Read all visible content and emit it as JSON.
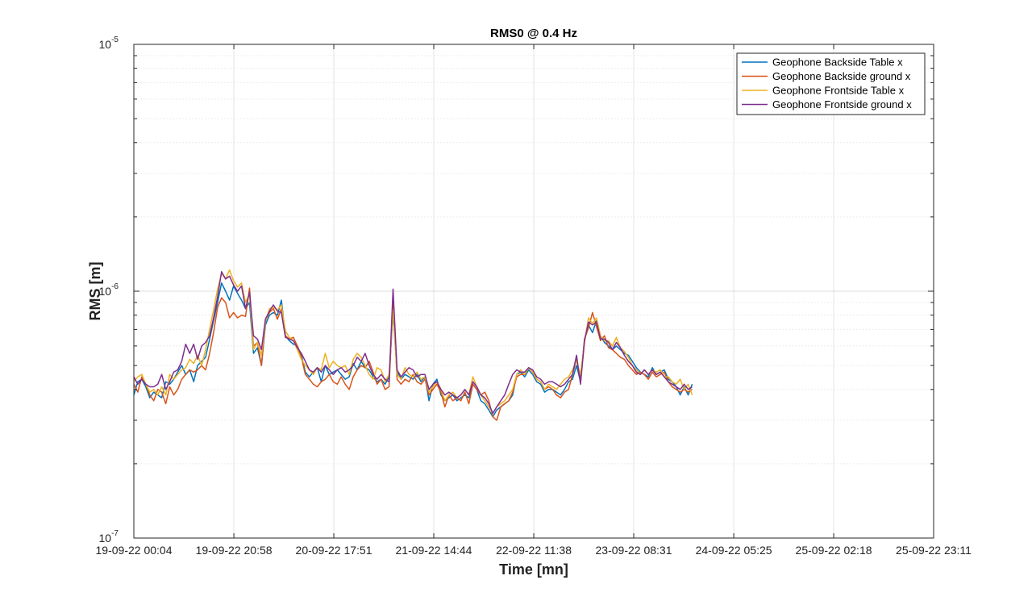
{
  "chart_data": {
    "type": "line",
    "title": "RMS0 @ 0.4 Hz",
    "xlabel": "Time [mn]",
    "ylabel": "RMS [m]",
    "y_scale": "log",
    "ylim": [
      1e-07,
      1e-05
    ],
    "y_ticks": [
      {
        "value": 1e-07,
        "base": "10",
        "exp": "-7"
      },
      {
        "value": 1e-06,
        "base": "10",
        "exp": "-6"
      },
      {
        "value": 1e-05,
        "base": "10",
        "exp": "-5"
      }
    ],
    "x_tick_labels": [
      "19-09-22 00:04",
      "19-09-22 20:58",
      "20-09-22 17:51",
      "21-09-22 14:44",
      "22-09-22 11:38",
      "23-09-22 08:31",
      "24-09-22 05:25",
      "25-09-22 02:18",
      "25-09-22 23:11"
    ],
    "xlim": [
      "19-09-22 00:04",
      "25-09-22 23:11"
    ],
    "x_sample_step_min": 50,
    "grid": true,
    "minor_grid": true,
    "legend_position": "top-right",
    "series": [
      {
        "name": "Geophone Backside Table x",
        "color": "#0072BD",
        "values": [
          3.8e-07,
          4.3e-07,
          4.4e-07,
          4.1e-07,
          3.7e-07,
          3.9e-07,
          3.8e-07,
          3.7e-07,
          4.3e-07,
          4.2e-07,
          4.4e-07,
          4.7e-07,
          5e-07,
          4.6e-07,
          4.8e-07,
          4.3e-07,
          5e-07,
          5.2e-07,
          5.4e-07,
          6.4e-07,
          7.6e-07,
          9e-07,
          1.08e-06,
          1e-06,
          9.2e-07,
          1.05e-06,
          9.8e-07,
          9.2e-07,
          8.5e-07,
          9e-07,
          5.6e-07,
          5.9e-07,
          5e-07,
          7.3e-07,
          8e-07,
          8.2e-07,
          8e-07,
          9.2e-07,
          6.6e-07,
          6.3e-07,
          6.1e-07,
          6e-07,
          5.5e-07,
          4.7e-07,
          4.5e-07,
          4.7e-07,
          4.9e-07,
          4.3e-07,
          5e-07,
          4.6e-07,
          4.7e-07,
          4.8e-07,
          4.6e-07,
          4.4e-07,
          4.5e-07,
          5.1e-07,
          4.8e-07,
          5.2e-07,
          4.9e-07,
          4.8e-07,
          4.5e-07,
          4.3e-07,
          4.4e-07,
          4.2e-07,
          4.5e-07,
          8.2e-07,
          4.7e-07,
          4.4e-07,
          4.6e-07,
          4.5e-07,
          4.4e-07,
          4.6e-07,
          4.3e-07,
          4.5e-07,
          3.6e-07,
          4.2e-07,
          4.4e-07,
          3.8e-07,
          3.6e-07,
          3.7e-07,
          3.8e-07,
          3.6e-07,
          3.7e-07,
          3.8e-07,
          3.7e-07,
          4.2e-07,
          4e-07,
          3.6e-07,
          3.5e-07,
          3.3e-07,
          3.1e-07,
          3.3e-07,
          3.4e-07,
          3.5e-07,
          3.6e-07,
          3.8e-07,
          4.6e-07,
          4.7e-07,
          4.5e-07,
          4.8e-07,
          4.6e-07,
          4.3e-07,
          4.2e-07,
          3.9e-07,
          4e-07,
          4e-07,
          3.9e-07,
          3.8e-07,
          4e-07,
          4.3e-07,
          4.4e-07,
          5e-07,
          4.3e-07,
          6.4e-07,
          7.3e-07,
          6.8e-07,
          7.6e-07,
          6.6e-07,
          6.2e-07,
          6e-07,
          5.8e-07,
          6e-07,
          5.8e-07,
          5.6e-07,
          5.5e-07,
          5.2e-07,
          4.9e-07,
          4.7e-07,
          4.6e-07,
          4.5e-07,
          4.9e-07,
          4.6e-07,
          4.7e-07,
          4.8e-07,
          4.4e-07,
          4.3e-07,
          4.1e-07,
          3.8e-07,
          4.1e-07,
          3.8e-07,
          4.2e-07
        ]
      },
      {
        "name": "Geophone Backside ground x",
        "color": "#D95319",
        "values": [
          4.2e-07,
          3.9e-07,
          4.5e-07,
          4.2e-07,
          3.8e-07,
          3.6e-07,
          4e-07,
          3.9e-07,
          3.5e-07,
          4.1e-07,
          3.8e-07,
          4e-07,
          4.4e-07,
          4.6e-07,
          4.8e-07,
          4.7e-07,
          4.8e-07,
          5e-07,
          4.8e-07,
          5.6e-07,
          6.8e-07,
          8.6e-07,
          9.4e-07,
          9e-07,
          7.8e-07,
          8.2e-07,
          7.8e-07,
          8e-07,
          7.9e-07,
          1.03e-06,
          6e-07,
          6.2e-07,
          5e-07,
          7.6e-07,
          8.2e-07,
          8.5e-07,
          7.7e-07,
          8.5e-07,
          6.6e-07,
          6.4e-07,
          6.5e-07,
          6e-07,
          5.4e-07,
          4.6e-07,
          4.4e-07,
          4.2e-07,
          4.1e-07,
          4.3e-07,
          4.4e-07,
          4.6e-07,
          4.3e-07,
          4.2e-07,
          4.5e-07,
          4.2e-07,
          4e-07,
          4.5e-07,
          4.8e-07,
          5e-07,
          4.9e-07,
          5.2e-07,
          4.7e-07,
          4.2e-07,
          4.4e-07,
          4e-07,
          4.1e-07,
          9.4e-07,
          4.4e-07,
          4.2e-07,
          4.4e-07,
          4.3e-07,
          4.6e-07,
          4.3e-07,
          4.2e-07,
          4.4e-07,
          3.8e-07,
          4e-07,
          4.2e-07,
          3.9e-07,
          3.4e-07,
          3.8e-07,
          3.6e-07,
          3.7e-07,
          3.6e-07,
          3.9e-07,
          3.5e-07,
          4.2e-07,
          4e-07,
          3.8e-07,
          3.9e-07,
          3.6e-07,
          3.1e-07,
          3e-07,
          3.4e-07,
          3.5e-07,
          3.6e-07,
          3.9e-07,
          4.5e-07,
          4.6e-07,
          4.6e-07,
          4.9e-07,
          4.7e-07,
          4.4e-07,
          4.3e-07,
          4e-07,
          4.1e-07,
          4e-07,
          3.8e-07,
          3.7e-07,
          3.9e-07,
          4e-07,
          4.6e-07,
          5.3e-07,
          4.4e-07,
          6.4e-07,
          7.1e-07,
          8.2e-07,
          7.2e-07,
          6.3e-07,
          6.6e-07,
          5.9e-07,
          5.8e-07,
          5.6e-07,
          5.4e-07,
          5.3e-07,
          5e-07,
          4.8e-07,
          4.6e-07,
          4.7e-07,
          4.6e-07,
          4.4e-07,
          4.7e-07,
          4.5e-07,
          4.6e-07,
          4.7e-07,
          4.3e-07,
          4.1e-07,
          4e-07,
          3.9e-07,
          4e-07,
          3.9e-07,
          4e-07
        ]
      },
      {
        "name": "Geophone Frontside Table x",
        "color": "#EDB120",
        "values": [
          4.3e-07,
          4.5e-07,
          4.6e-07,
          4.2e-07,
          3.9e-07,
          4e-07,
          3.8e-07,
          4.1e-07,
          3.8e-07,
          4.6e-07,
          4.4e-07,
          4.6e-07,
          4.8e-07,
          4.9e-07,
          5.3e-07,
          5.1e-07,
          5.5e-07,
          5e-07,
          5.8e-07,
          7e-07,
          8.4e-07,
          1.02e-06,
          1.18e-06,
          1.12e-06,
          1.22e-06,
          1.1e-06,
          1.04e-06,
          1.08e-06,
          9e-07,
          9.8e-07,
          5.8e-07,
          6.2e-07,
          5.5e-07,
          7.5e-07,
          8.5e-07,
          8.6e-07,
          8.4e-07,
          8.8e-07,
          6.9e-07,
          6.5e-07,
          6.3e-07,
          5.8e-07,
          5.3e-07,
          5e-07,
          4.8e-07,
          4.6e-07,
          4.9e-07,
          4.8e-07,
          5.6e-07,
          4.9e-07,
          5.2e-07,
          5e-07,
          4.9e-07,
          5e-07,
          4.6e-07,
          5.3e-07,
          5.6e-07,
          5.4e-07,
          5e-07,
          4.6e-07,
          4.4e-07,
          4.9e-07,
          4.8e-07,
          4.3e-07,
          4.6e-07,
          8.4e-07,
          4.6e-07,
          4.4e-07,
          4.9e-07,
          4.6e-07,
          4.5e-07,
          4.7e-07,
          4.4e-07,
          4.5e-07,
          3.9e-07,
          4.1e-07,
          4.3e-07,
          4e-07,
          3.6e-07,
          3.8e-07,
          3.9e-07,
          3.7e-07,
          3.8e-07,
          4e-07,
          3.8e-07,
          4.5e-07,
          4.1e-07,
          3.8e-07,
          3.6e-07,
          3.4e-07,
          3.2e-07,
          3.4e-07,
          3.5e-07,
          3.6e-07,
          3.8e-07,
          4e-07,
          4.6e-07,
          4.8e-07,
          4.6e-07,
          4.9e-07,
          4.7e-07,
          4.4e-07,
          4.3e-07,
          4e-07,
          4.2e-07,
          4.1e-07,
          4e-07,
          4.2e-07,
          4.4e-07,
          4.5e-07,
          4.8e-07,
          5.2e-07,
          4.6e-07,
          6.2e-07,
          7.8e-07,
          7.4e-07,
          7.8e-07,
          6.6e-07,
          6.3e-07,
          6.3e-07,
          6e-07,
          6.5e-07,
          5.9e-07,
          5.7e-07,
          5.4e-07,
          5e-07,
          4.8e-07,
          4.6e-07,
          4.8e-07,
          4.6e-07,
          4.8e-07,
          4.7e-07,
          4.8e-07,
          4.5e-07,
          4.5e-07,
          4.3e-07,
          4.2e-07,
          4.4e-07,
          4e-07,
          4.2e-07,
          3.8e-07
        ]
      },
      {
        "name": "Geophone Frontside ground x",
        "color": "#7E2F8E",
        "values": [
          4.5e-07,
          4.2e-07,
          4.4e-07,
          4.2e-07,
          4.1e-07,
          4.1e-07,
          4.2e-07,
          4.6e-07,
          4e-07,
          4.3e-07,
          4.7e-07,
          4.8e-07,
          5.2e-07,
          6.1e-07,
          5.6e-07,
          6.1e-07,
          5.3e-07,
          6e-07,
          6.2e-07,
          6.6e-07,
          7.8e-07,
          9.5e-07,
          1.2e-06,
          1.12e-06,
          1.15e-06,
          1.06e-06,
          1e-06,
          1.05e-06,
          8.5e-07,
          9.9e-07,
          6.6e-07,
          6.4e-07,
          5.8e-07,
          7.7e-07,
          8.3e-07,
          8.8e-07,
          8.3e-07,
          8.2e-07,
          6.5e-07,
          6.4e-07,
          6.3e-07,
          5.9e-07,
          5.6e-07,
          5.2e-07,
          4.8e-07,
          4.7e-07,
          4.9e-07,
          4.7e-07,
          5e-07,
          4.8e-07,
          4.6e-07,
          4.8e-07,
          4.9e-07,
          4.7e-07,
          4.8e-07,
          5e-07,
          5.4e-07,
          5.2e-07,
          5.6e-07,
          5e-07,
          4.6e-07,
          4.4e-07,
          4.6e-07,
          4.4e-07,
          4.3e-07,
          1.02e-06,
          4.8e-07,
          4.5e-07,
          4.7e-07,
          4.9e-07,
          4.8e-07,
          4.5e-07,
          4.6e-07,
          4.6e-07,
          4e-07,
          4.2e-07,
          4.3e-07,
          4e-07,
          3.8e-07,
          3.9e-07,
          3.8e-07,
          3.7e-07,
          3.8e-07,
          4e-07,
          3.8e-07,
          4.3e-07,
          4.1e-07,
          3.8e-07,
          3.7e-07,
          3.5e-07,
          3.2e-07,
          3.4e-07,
          3.6e-07,
          3.8e-07,
          4.2e-07,
          4.6e-07,
          4.8e-07,
          4.7e-07,
          4.7e-07,
          4.9e-07,
          4.8e-07,
          4.5e-07,
          4.4e-07,
          4.2e-07,
          4.3e-07,
          4.3e-07,
          4.2e-07,
          4.1e-07,
          4.2e-07,
          4.4e-07,
          4.6e-07,
          5.5e-07,
          4.2e-07,
          6.3e-07,
          7.5e-07,
          7.3e-07,
          7.5e-07,
          6.4e-07,
          6.4e-07,
          6.2e-07,
          5.8e-07,
          6.2e-07,
          5.9e-07,
          5.5e-07,
          5.2e-07,
          5e-07,
          4.7e-07,
          4.6e-07,
          4.8e-07,
          4.6e-07,
          4.8e-07,
          4.6e-07,
          4.7e-07,
          4.5e-07,
          4.3e-07,
          4.2e-07,
          4.1e-07,
          4e-07,
          4.2e-07,
          4e-07,
          4.1e-07
        ]
      }
    ]
  }
}
